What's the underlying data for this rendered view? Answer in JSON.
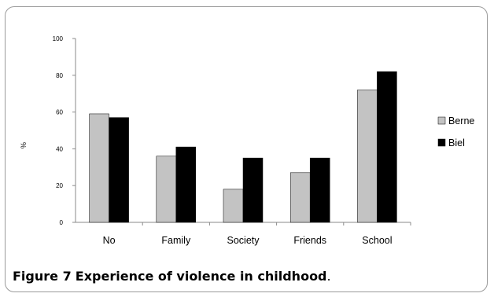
{
  "caption": {
    "figure_label": "Figure 7",
    "title": "Experience of violence in childhood",
    "end": "."
  },
  "colors": {
    "Berne": "#c3c3c3",
    "Biel": "#000000"
  },
  "chart_data": {
    "type": "bar",
    "categories": [
      "No",
      "Family",
      "Society",
      "Friends",
      "School"
    ],
    "series": [
      {
        "name": "Berne",
        "values": [
          59,
          36,
          18,
          27,
          72
        ]
      },
      {
        "name": "Biel",
        "values": [
          57,
          41,
          35,
          35,
          82
        ]
      }
    ],
    "ylabel": "%",
    "ylim": [
      0,
      100
    ],
    "yticks": [
      0,
      20,
      40,
      60,
      80,
      100
    ],
    "legend_position": "right",
    "grid": false
  }
}
